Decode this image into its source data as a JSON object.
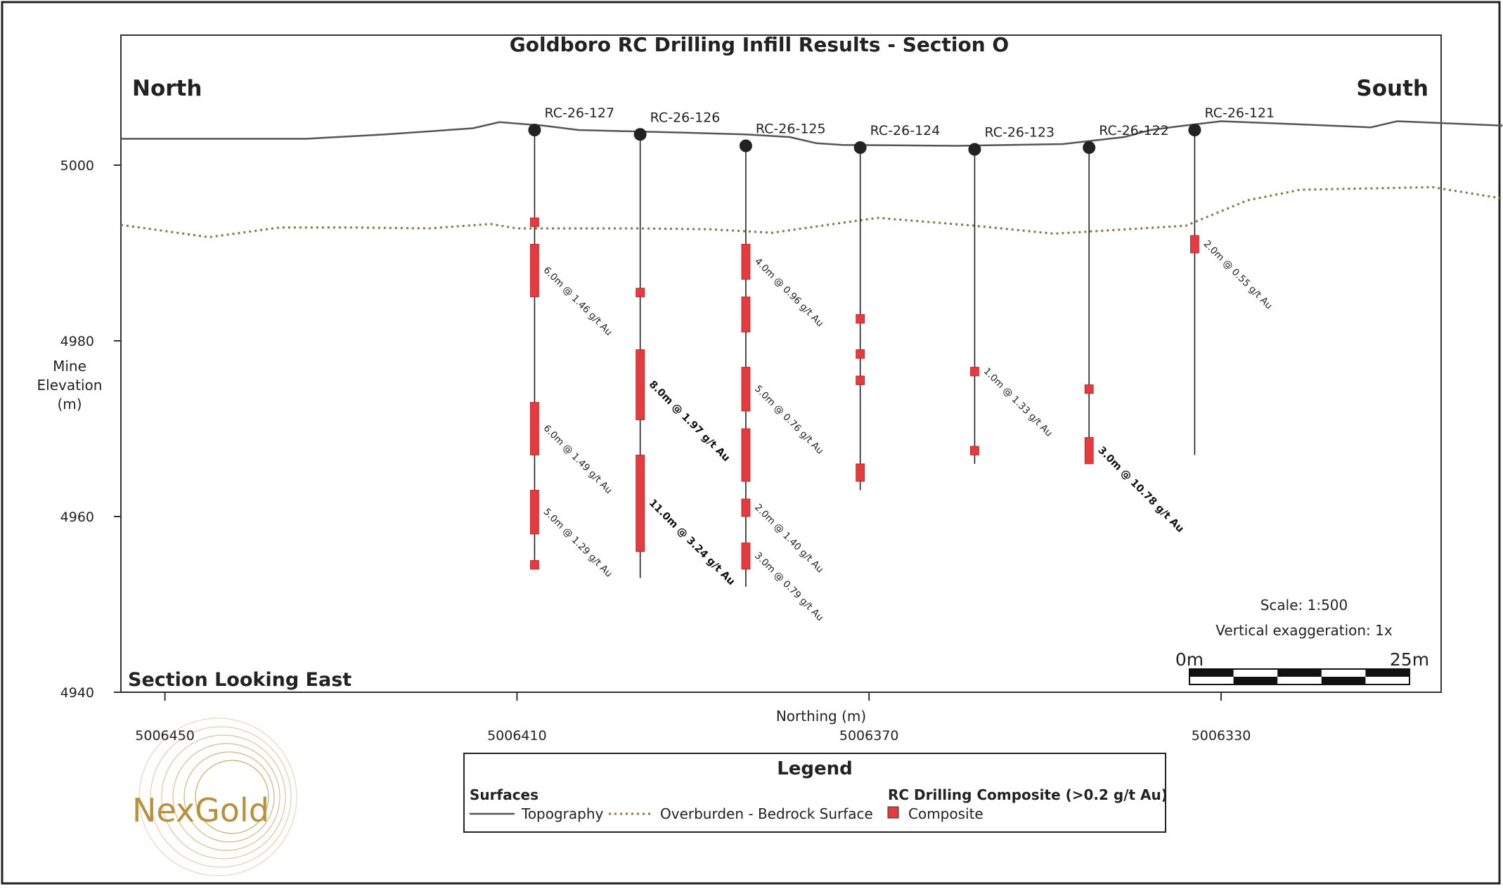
{
  "title": "Goldboro RC Drilling Infill Results - Section O",
  "north_label": "North",
  "south_label": "South",
  "section_label": "Section Looking East",
  "y_axis": {
    "label_lines": [
      "Mine",
      "Elevation",
      "(m)"
    ],
    "ticks": [
      5000,
      4980,
      4960,
      4940
    ],
    "range": [
      4940,
      5006
    ]
  },
  "x_axis": {
    "label": "Northing (m)",
    "ticks": [
      "5006450",
      "5006410",
      "5006370",
      "5006330"
    ],
    "ticks_num": [
      5006450,
      5006410,
      5006370,
      5006330
    ],
    "range": [
      5006455,
      5006305
    ]
  },
  "scale": {
    "ratio_text": "Scale: 1:500",
    "exaggeration_text": "Vertical exaggeration: 1x",
    "bar_start": "0m",
    "bar_end": "25m"
  },
  "legend": {
    "title": "Legend",
    "surfaces_heading": "Surfaces",
    "topography": "Topography",
    "overburden": "Overburden - Bedrock Surface",
    "composite_heading": "RC Drilling Composite (>0.2 g/t Au)",
    "composite": "Composite"
  },
  "logo_text": "NexGold",
  "colors": {
    "composite": "#e63b3e",
    "topography": "#555555",
    "overburden": "#8b7345",
    "logo": "#b8903e"
  },
  "topography": [
    [
      5006455,
      5003
    ],
    [
      5006441,
      5003
    ],
    [
      5006434,
      5003
    ],
    [
      5006425,
      5003.5
    ],
    [
      5006415,
      5004.2
    ],
    [
      5006412,
      5004.9
    ],
    [
      5006407,
      5004.5
    ],
    [
      5006403,
      5004
    ],
    [
      5006391,
      5003.7
    ],
    [
      5006384,
      5003.5
    ],
    [
      5006379,
      5003.2
    ],
    [
      5006376,
      5002.5
    ],
    [
      5006373,
      5002.3
    ],
    [
      5006360,
      5002.2
    ],
    [
      5006348,
      5002.4
    ],
    [
      5006341,
      5003.2
    ],
    [
      5006338,
      5004
    ],
    [
      5006335,
      5004.4
    ],
    [
      5006330,
      5005
    ],
    [
      5006320,
      5004.6
    ],
    [
      5006313,
      5004.3
    ],
    [
      5006310,
      5005
    ],
    [
      5006298,
      5004.5
    ]
  ],
  "overburden": [
    [
      5006455,
      4993.2
    ],
    [
      5006445,
      4991.8
    ],
    [
      5006437,
      4992.9
    ],
    [
      5006428,
      4992.9
    ],
    [
      5006420,
      4992.8
    ],
    [
      5006413,
      4993.3
    ],
    [
      5006410,
      4992.8
    ],
    [
      5006396,
      4992.8
    ],
    [
      5006388,
      4992.7
    ],
    [
      5006381,
      4992.3
    ],
    [
      5006374,
      4993.3
    ],
    [
      5006369,
      4994
    ],
    [
      5006358,
      4993.1
    ],
    [
      5006349,
      4992.2
    ],
    [
      5006334,
      4993.1
    ],
    [
      5006327,
      4996
    ],
    [
      5006321,
      4997.2
    ],
    [
      5006306,
      4997.5
    ],
    [
      5006298,
      4996.2
    ]
  ],
  "holes": [
    {
      "name": "RC-26-127",
      "northing": 5006408,
      "collar": 5004,
      "bottom": 4954,
      "intervals": [
        [
          4994,
          4993
        ],
        [
          4991,
          4985
        ],
        [
          4973,
          4967
        ],
        [
          4963,
          4958
        ],
        [
          4955,
          4954
        ]
      ],
      "labels": [
        {
          "text": "6.0m @ 1.46 g/t Au",
          "elev": 4988,
          "bold": false
        },
        {
          "text": "6.0m @ 1.49 g/t Au",
          "elev": 4970,
          "bold": false
        },
        {
          "text": "5.0m @ 1.29 g/t Au",
          "elev": 4960.5,
          "bold": false
        }
      ]
    },
    {
      "name": "RC-26-126",
      "northing": 5006396,
      "collar": 5003.5,
      "bottom": 4953,
      "intervals": [
        [
          4986,
          4985
        ],
        [
          4979,
          4971
        ],
        [
          4967,
          4956
        ]
      ],
      "labels": [
        {
          "text": "8.0m @ 1.97 g/t Au",
          "elev": 4975,
          "bold": true
        },
        {
          "text": "11.0m @ 3.24 g/t Au",
          "elev": 4961.5,
          "bold": true
        }
      ]
    },
    {
      "name": "RC-26-125",
      "northing": 5006384,
      "collar": 5002.2,
      "bottom": 4952,
      "intervals": [
        [
          4991,
          4987
        ],
        [
          4985,
          4981
        ],
        [
          4977,
          4972
        ],
        [
          4970,
          4964
        ],
        [
          4962,
          4960
        ],
        [
          4957,
          4954
        ]
      ],
      "labels": [
        {
          "text": "4.0m @ 0.96 g/t Au",
          "elev": 4989,
          "bold": false
        },
        {
          "text": "5.0m @ 0.76 g/t Au",
          "elev": 4974.5,
          "bold": false
        },
        {
          "text": "2.0m @ 1.40 g/t Au",
          "elev": 4961,
          "bold": false
        },
        {
          "text": "3.0m @ 0.79 g/t Au",
          "elev": 4955.5,
          "bold": false
        }
      ]
    },
    {
      "name": "RC-26-124",
      "northing": 5006371,
      "collar": 5002,
      "bottom": 4963,
      "intervals": [
        [
          4983,
          4982
        ],
        [
          4979,
          4978
        ],
        [
          4976,
          4975
        ],
        [
          4966,
          4964
        ]
      ],
      "labels": []
    },
    {
      "name": "RC-26-123",
      "northing": 5006358,
      "collar": 5001.8,
      "bottom": 4966,
      "intervals": [
        [
          4977,
          4976
        ],
        [
          4968,
          4967
        ]
      ],
      "labels": [
        {
          "text": "1.0m @ 1.33 g/t Au",
          "elev": 4976.5,
          "bold": false
        }
      ]
    },
    {
      "name": "RC-26-122",
      "northing": 5006345,
      "collar": 5002,
      "bottom": 4966,
      "intervals": [
        [
          4975,
          4974
        ],
        [
          4969,
          4966
        ]
      ],
      "labels": [
        {
          "text": "3.0m @ 10.78 g/t Au",
          "elev": 4967.5,
          "bold": true
        }
      ]
    },
    {
      "name": "RC-26-121",
      "northing": 5006333,
      "collar": 5004,
      "bottom": 4967,
      "intervals": [
        [
          4992,
          4990
        ]
      ],
      "labels": [
        {
          "text": "2.0m @ 0.55 g/t Au",
          "elev": 4991,
          "bold": false
        }
      ]
    }
  ]
}
